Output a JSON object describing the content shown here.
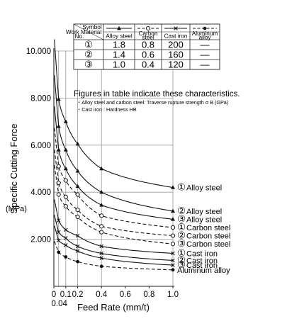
{
  "chart_data": {
    "type": "line",
    "ylabel": "Specific Cutting Force",
    "yunit": "(MPa)",
    "xlabel": "Feed Rate (mm/t)",
    "xlim": [
      0,
      1.0
    ],
    "ylim": [
      0,
      10000
    ],
    "yticks": [
      "2.000",
      "4.000",
      "6.000",
      "8.000",
      "10.000"
    ],
    "xticks": [
      "0",
      "0.1",
      "0.2",
      "0.4",
      "0.6",
      "0.8",
      "1.0"
    ],
    "xtick_extra": "0.04",
    "x": [
      0.04,
      0.1,
      0.2,
      0.4,
      1.0
    ],
    "series": [
      {
        "group": "alloy",
        "marker": "triangle",
        "dash": false,
        "label_no": "①",
        "label": "Alloy steel",
        "values": [
          7950,
          7000,
          6050,
          5000,
          4200
        ]
      },
      {
        "group": "alloy",
        "marker": "triangle",
        "dash": false,
        "label_no": "②",
        "label": "Alloy steel",
        "values": [
          6800,
          5800,
          4900,
          4000,
          3200
        ]
      },
      {
        "group": "alloy",
        "marker": "triangle",
        "dash": false,
        "label_no": "③",
        "label": "Alloy steel",
        "values": [
          5800,
          5000,
          4250,
          3450,
          2850
        ]
      },
      {
        "group": "carbon",
        "marker": "circle",
        "dash": true,
        "label_no": "①",
        "label": "Carbon steel",
        "values": [
          5100,
          4500,
          3900,
          3000,
          2500
        ]
      },
      {
        "group": "carbon",
        "marker": "circle",
        "dash": true,
        "label_no": "②",
        "label": "Carbon steel",
        "values": [
          4400,
          3800,
          3250,
          2550,
          2150
        ]
      },
      {
        "group": "carbon",
        "marker": "circle",
        "dash": true,
        "label_no": "③",
        "label": "Carbon steel",
        "values": [
          3900,
          3400,
          2950,
          2300,
          1800
        ]
      },
      {
        "group": "castiron",
        "marker": "cross",
        "dash": false,
        "label_no": "①",
        "label": "Cast iron",
        "values": [
          2800,
          2400,
          2150,
          1700,
          1400
        ]
      },
      {
        "group": "castiron",
        "marker": "cross",
        "dash": false,
        "label_no": "②",
        "label": "Cast iron",
        "values": [
          2300,
          2050,
          1700,
          1400,
          1100
        ]
      },
      {
        "group": "castiron",
        "marker": "cross",
        "dash": false,
        "label_no": "③",
        "label": "Cast iron",
        "values": [
          1950,
          1750,
          1500,
          1200,
          900
        ]
      },
      {
        "group": "aluminum",
        "marker": "dot",
        "dash": true,
        "label_no": "",
        "label": "Aluminum alloy",
        "values": [
          1450,
          1250,
          1050,
          850,
          700
        ]
      }
    ],
    "table": {
      "headers": {
        "symbol": "Symbol",
        "work_material": "Work Material",
        "no": "No.",
        "cols": [
          "Alloy steel",
          "Carbon steel",
          "Cast iron",
          "Aluminum alloy"
        ]
      },
      "rows": [
        {
          "no": "①",
          "values": [
            "1.8",
            "0.8",
            "200",
            "—"
          ]
        },
        {
          "no": "②",
          "values": [
            "1.4",
            "0.6",
            "160",
            "—"
          ]
        },
        {
          "no": "③",
          "values": [
            "1.0",
            "0.4",
            "120",
            "—"
          ]
        }
      ]
    },
    "note": {
      "title": "Figures in table indicate these characteristics.",
      "line1": "・Alloy steel and carbon steel: Traverse rupture strength σ B (GPa)",
      "line2": "・Cast iron : Hardness HB"
    }
  }
}
